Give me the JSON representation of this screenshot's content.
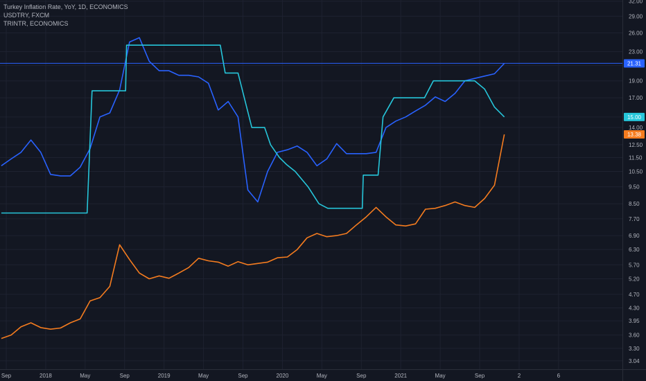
{
  "legend": {
    "line1": "Turkey Inflation Rate, YoY, 1D, ECONOMICS",
    "line2": "USDTRY, FXCM",
    "line3": "TRINTR, ECONOMICS"
  },
  "colors": {
    "background": "#131722",
    "grid": "#1e2230",
    "axis_text": "#b2b5be",
    "inflation": "#2962ff",
    "usdtry": "#f57c1f",
    "trintr": "#26c6da",
    "horizontal_line": "#2962ff"
  },
  "chart_data": {
    "type": "line",
    "title": "Turkey Inflation Rate, YoY, 1D, ECONOMICS",
    "y_scale": "log",
    "ylim": [
      2.9,
      33
    ],
    "y_ticks": [
      "3.04",
      "3.30",
      "3.60",
      "3.95",
      "4.30",
      "4.70",
      "5.20",
      "5.70",
      "6.30",
      "6.90",
      "7.70",
      "8.50",
      "9.50",
      "10.50",
      "11.50",
      "12.50",
      "14.00",
      "15.00",
      "17.00",
      "19.00",
      "21.00",
      "23.00",
      "26.00",
      "29.00",
      "32.00"
    ],
    "x_ticks": [
      "Sep",
      "2018",
      "May",
      "Sep",
      "2019",
      "May",
      "Sep",
      "2020",
      "May",
      "Sep",
      "2021",
      "May",
      "Sep",
      "2",
      "6"
    ],
    "x_tick_months": [
      0,
      4,
      8,
      12,
      16,
      20,
      24,
      28,
      32,
      36,
      40,
      44,
      48,
      52,
      56
    ],
    "grid": true,
    "horizontal_line": 21.31,
    "price_labels": [
      {
        "series": "Turkey Inflation Rate",
        "text": "21.31"
      },
      {
        "series": "TRINTR",
        "text": "15.00"
      },
      {
        "series": "USDTRY",
        "text": "13.38"
      }
    ],
    "series": [
      {
        "name": "Turkey Inflation Rate",
        "color": "#2962ff",
        "x": [
          -0.5,
          0.5,
          1.5,
          2.5,
          3.5,
          4.5,
          5.5,
          6.5,
          7.5,
          8.5,
          9.5,
          10.5,
          11.5,
          12.5,
          13.5,
          14.5,
          15.5,
          16.5,
          17.5,
          18.5,
          19.5,
          20.5,
          21.5,
          22.5,
          23.5,
          24.5,
          25.5,
          26.5,
          27.5,
          28.5,
          29.5,
          30.5,
          31.5,
          32.5,
          33.5,
          34.5,
          35.5,
          36.5,
          37.5,
          38.5,
          39.5,
          40.5,
          41.5,
          42.5,
          43.5,
          44.5,
          45.5,
          46.5,
          47.5,
          48.5,
          49.5,
          50.5
        ],
        "y": [
          10.9,
          11.4,
          11.9,
          12.9,
          11.9,
          10.3,
          10.2,
          10.2,
          10.8,
          12.2,
          15.0,
          15.4,
          17.9,
          24.5,
          25.2,
          21.6,
          20.3,
          20.3,
          19.7,
          19.7,
          19.5,
          18.7,
          15.7,
          16.6,
          15.0,
          9.3,
          8.6,
          10.5,
          11.9,
          12.1,
          12.4,
          11.9,
          10.9,
          11.4,
          12.6,
          11.8,
          11.8,
          11.8,
          11.9,
          14.0,
          14.6,
          15.0,
          15.6,
          16.2,
          17.1,
          16.6,
          17.5,
          19.0,
          19.3,
          19.6,
          19.9,
          21.3
        ]
      },
      {
        "name": "USDTRY",
        "color": "#f57c1f",
        "x": [
          -0.5,
          0.5,
          1.5,
          2.5,
          3.5,
          4.5,
          5.5,
          6.5,
          7.5,
          8.5,
          9.5,
          10.5,
          11.5,
          12.5,
          13.5,
          14.5,
          15.5,
          16.5,
          17.5,
          18.5,
          19.5,
          20.5,
          21.5,
          22.5,
          23.5,
          24.5,
          25.5,
          26.5,
          27.5,
          28.5,
          29.5,
          30.5,
          31.5,
          32.5,
          33.5,
          34.5,
          35.5,
          36.5,
          37.5,
          38.5,
          39.5,
          40.5,
          41.5,
          42.5,
          43.5,
          44.5,
          45.5,
          46.5,
          47.5,
          48.5,
          49.5,
          50.5
        ],
        "y": [
          3.52,
          3.6,
          3.8,
          3.9,
          3.78,
          3.74,
          3.77,
          3.9,
          4.0,
          4.5,
          4.6,
          4.95,
          6.5,
          5.9,
          5.4,
          5.2,
          5.3,
          5.22,
          5.4,
          5.6,
          5.95,
          5.85,
          5.8,
          5.65,
          5.82,
          5.7,
          5.75,
          5.8,
          5.97,
          6.0,
          6.3,
          6.8,
          7.0,
          6.85,
          6.9,
          7.0,
          7.4,
          7.8,
          8.3,
          7.8,
          7.4,
          7.35,
          7.45,
          8.2,
          8.25,
          8.4,
          8.6,
          8.4,
          8.3,
          8.8,
          9.6,
          13.38
        ]
      },
      {
        "name": "TRINTR",
        "color": "#26c6da",
        "x": [
          -0.5,
          8.1,
          8.2,
          8.7,
          9.8,
          11.4,
          12.1,
          12.2,
          12.8,
          15.0,
          18.0,
          21.0,
          21.7,
          22.2,
          22.9,
          23.5,
          24.9,
          25.8,
          26.2,
          26.8,
          27.7,
          28.4,
          29.3,
          30.6,
          31.7,
          32.6,
          33.5,
          34.4,
          35.3,
          36.1,
          36.2,
          37.2,
          37.7,
          38.2,
          39.3,
          40.4,
          41.4,
          41.7,
          42.4,
          43.3,
          44.4,
          45.4,
          46.4,
          46.5,
          47.5,
          48.5,
          49.5,
          50.5
        ],
        "y": [
          8.0,
          8.0,
          8.0,
          17.8,
          17.8,
          17.8,
          17.8,
          24.0,
          24.0,
          24.0,
          24.0,
          24.0,
          24.0,
          20.0,
          20.0,
          20.0,
          14.0,
          14.0,
          14.0,
          12.5,
          11.5,
          11.0,
          10.5,
          9.5,
          8.5,
          8.25,
          8.25,
          8.25,
          8.25,
          8.25,
          10.25,
          10.25,
          10.25,
          15.0,
          17.0,
          17.0,
          17.0,
          17.0,
          17.0,
          19.0,
          19.0,
          19.0,
          19.0,
          19.0,
          19.0,
          18.0,
          16.0,
          15.0
        ]
      }
    ]
  }
}
